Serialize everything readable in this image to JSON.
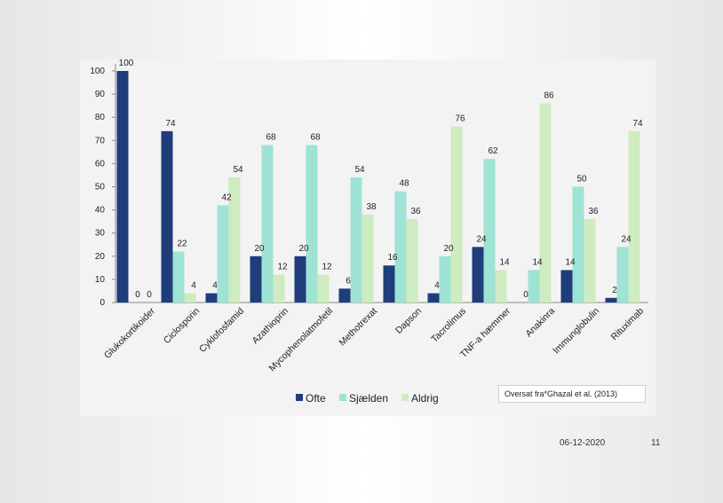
{
  "chart_data": {
    "type": "bar",
    "title": "",
    "xlabel": "",
    "ylabel": "",
    "ylim": [
      0,
      100
    ],
    "yticks": [
      0,
      10,
      20,
      30,
      40,
      50,
      60,
      70,
      80,
      90,
      100
    ],
    "grid": false,
    "legend_position": "bottom",
    "categories": [
      "Glukokortikoider",
      "Ciclosporin",
      "Cyklofosfamid",
      "Azathioprin",
      "Mycophenolatmofetil",
      "Methotrexat",
      "Dapson",
      "Tacrolimus",
      "TNF-a hæmmer",
      "Anakinra",
      "Immunglobulin",
      "Rituximab"
    ],
    "series": [
      {
        "name": "Ofte",
        "color": "#1f3d7a",
        "values": [
          100,
          74,
          4,
          20,
          20,
          6,
          16,
          4,
          24,
          0,
          14,
          2
        ]
      },
      {
        "name": "Sjælden",
        "color": "#9ee3d4",
        "values": [
          0,
          22,
          42,
          68,
          68,
          54,
          48,
          20,
          62,
          14,
          50,
          24
        ]
      },
      {
        "name": "Aldrig",
        "color": "#cfebc0",
        "values": [
          0,
          4,
          54,
          12,
          12,
          38,
          36,
          76,
          14,
          86,
          36,
          74
        ]
      }
    ]
  },
  "source_note": "Oversat fra*Ghazal et al. (2013)",
  "footer": {
    "date": "06-12-2020",
    "page": "11"
  }
}
